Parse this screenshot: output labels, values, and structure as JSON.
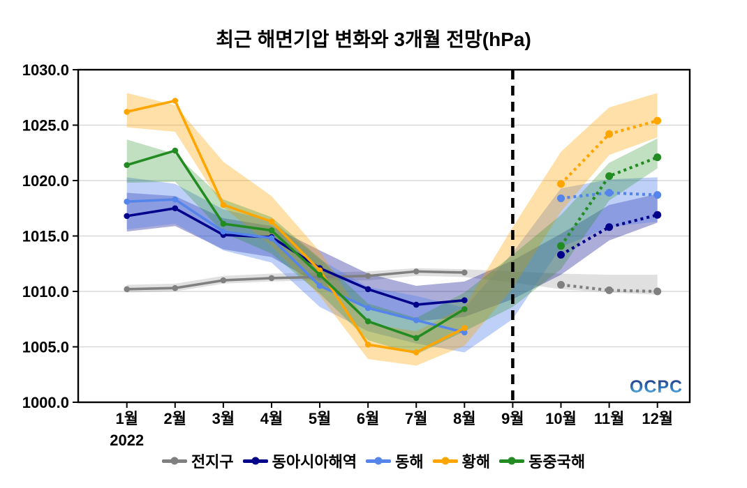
{
  "chart_data": {
    "type": "line",
    "title": "최근 해면기압 변화와 3개월 전망(hPa)",
    "x_year_label": "2022",
    "categories": [
      "1월",
      "2월",
      "3월",
      "4월",
      "5월",
      "6월",
      "7월",
      "8월",
      "9월",
      "10월",
      "11월",
      "12월"
    ],
    "ylim": [
      1000.0,
      1030.0
    ],
    "yticks": [
      1000,
      1005,
      1010,
      1015,
      1020,
      1025,
      1030
    ],
    "ytick_labels": [
      "1000.0",
      "1005.0",
      "1010.0",
      "1015.0",
      "1020.0",
      "1025.0",
      "1030.0"
    ],
    "grid": "horizontal",
    "legend_position": "bottom",
    "observed_months": [
      1,
      2,
      3,
      4,
      5,
      6,
      7,
      8
    ],
    "forecast_months": [
      10,
      11,
      12
    ],
    "forecast_divider": {
      "month_index": 8,
      "label": "9월",
      "style": "black-dashed-vertical-line"
    },
    "watermark": "OCPC",
    "watermark_colors": [
      "#24337f",
      "#2f74ba",
      "#6fd0f2"
    ],
    "series": [
      {
        "key": "global",
        "name": "전지구",
        "color": "#808080",
        "band_color": "#9f9f9f",
        "band_opacity": 0.32,
        "values": [
          1010.2,
          1010.3,
          1011.0,
          1011.2,
          1011.3,
          1011.4,
          1011.8,
          1011.7,
          null,
          1010.6,
          1010.1,
          1010.0
        ],
        "band_upper": [
          1010.6,
          1010.7,
          1011.4,
          1011.6,
          1011.7,
          1011.8,
          1012.1,
          1012.0,
          1011.8,
          1011.6,
          1011.5,
          1011.5
        ],
        "band_lower": [
          1009.9,
          1010.0,
          1010.7,
          1010.9,
          1011.0,
          1011.0,
          1011.4,
          1011.3,
          1010.8,
          1010.2,
          1009.9,
          1009.7
        ]
      },
      {
        "key": "east-asia-seas",
        "name": "동아시아해역",
        "color": "#00008b",
        "band_color": "#00008b",
        "band_opacity": 0.32,
        "values": [
          1016.8,
          1017.5,
          1015.1,
          1014.9,
          1012.1,
          1010.2,
          1008.8,
          1009.2,
          null,
          1013.3,
          1015.8,
          1016.9
        ],
        "band_upper": [
          1018.9,
          1018.6,
          1016.6,
          1015.9,
          1013.7,
          1011.6,
          1010.5,
          1010.9,
          1012.8,
          1015.2,
          1017.8,
          1018.8
        ],
        "band_lower": [
          1015.4,
          1015.9,
          1013.8,
          1013.1,
          1010.6,
          1008.6,
          1007.3,
          1007.7,
          1009.3,
          1011.5,
          1014.6,
          1016.2
        ]
      },
      {
        "key": "east-sea",
        "name": "동해",
        "color": "#5584ea",
        "band_color": "#5584ea",
        "band_opacity": 0.38,
        "values": [
          1018.1,
          1018.3,
          1015.4,
          1014.8,
          1010.5,
          1008.5,
          1007.4,
          1006.3,
          null,
          1018.4,
          1018.9,
          1018.7
        ],
        "band_upper": [
          1020.3,
          1019.7,
          1017.4,
          1016.4,
          1012.9,
          1010.4,
          1009.6,
          1008.5,
          1013.5,
          1019.3,
          1020.1,
          1020.3
        ],
        "band_lower": [
          1015.6,
          1016.1,
          1013.7,
          1012.6,
          1008.6,
          1006.4,
          1005.3,
          1004.5,
          1007.5,
          1014.0,
          1015.8,
          1016.3
        ]
      },
      {
        "key": "yellow-sea",
        "name": "황해",
        "color": "#ffa500",
        "band_color": "#ffa500",
        "band_opacity": 0.34,
        "values": [
          1026.2,
          1027.2,
          1017.8,
          1016.3,
          1011.9,
          1005.2,
          1004.5,
          1006.7,
          null,
          1019.7,
          1024.2,
          1025.4
        ],
        "band_upper": [
          1027.9,
          1026.8,
          1021.7,
          1018.6,
          1013.6,
          1007.1,
          1006.4,
          1008.6,
          1015.8,
          1022.6,
          1026.6,
          1027.9
        ],
        "band_lower": [
          1024.8,
          1024.4,
          1017.6,
          1014.1,
          1009.6,
          1003.9,
          1003.3,
          1005.1,
          1010.3,
          1017.2,
          1022.3,
          1023.9
        ]
      },
      {
        "key": "east-china-sea",
        "name": "동중국해",
        "color": "#228b22",
        "band_color": "#228b22",
        "band_opacity": 0.28,
        "values": [
          1021.4,
          1022.7,
          1016.1,
          1015.5,
          1011.5,
          1007.3,
          1005.8,
          1008.4,
          null,
          1014.1,
          1020.4,
          1022.1
        ],
        "band_upper": [
          1023.7,
          1022.4,
          1018.3,
          1016.7,
          1013.0,
          1008.9,
          1007.6,
          1009.9,
          1013.3,
          1016.9,
          1021.6,
          1023.8
        ],
        "band_lower": [
          1019.8,
          1019.9,
          1015.3,
          1013.4,
          1009.8,
          1005.6,
          1004.3,
          1006.4,
          1008.6,
          1012.0,
          1018.2,
          1021.1
        ]
      }
    ]
  }
}
